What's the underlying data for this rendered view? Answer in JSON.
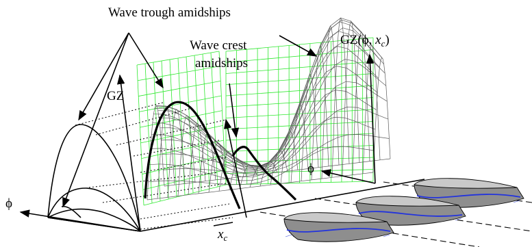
{
  "labels": {
    "trough": "Wave trough amidships",
    "crest_line1": "Wave crest",
    "crest_line2": "amidships",
    "gz_surface_prefix": "GZ(ϕ, ",
    "gz_surface_var": "x",
    "gz_surface_sub": "c",
    "gz_surface_suffix": ")",
    "gz_axis": "GZ",
    "phi_left": "ϕ",
    "phi_right": "ϕ",
    "xc_var": "x",
    "xc_sub": "c"
  },
  "colors": {
    "grid": "#2ee82e",
    "mesh": "#5a5a5a",
    "hull": "#8e8e8e",
    "waterline": "#2233dd"
  },
  "icons": [
    "arrow-icon",
    "ship-icon"
  ]
}
